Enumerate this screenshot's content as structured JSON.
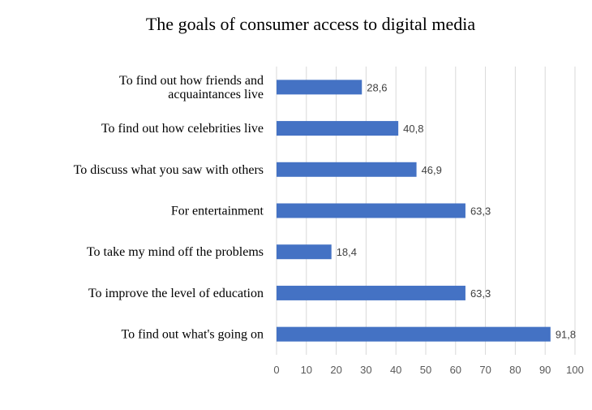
{
  "chart_data": {
    "type": "bar",
    "orientation": "horizontal",
    "title": "The goals of consumer access to digital media",
    "categories": [
      [
        "To find out how friends and",
        " acquaintances live"
      ],
      [
        "To find out how celebrities live"
      ],
      [
        "To discuss what you saw with others"
      ],
      [
        "For entertainment"
      ],
      [
        "To take my mind off the problems"
      ],
      [
        "To improve the level of education"
      ],
      [
        "To find out what's going on"
      ]
    ],
    "values": [
      28.6,
      40.8,
      46.9,
      63.3,
      18.4,
      63.3,
      91.8
    ],
    "value_labels": [
      "28,6",
      "40,8",
      "46,9",
      "63,3",
      "18,4",
      "63,3",
      "91,8"
    ],
    "xlim": [
      0,
      100
    ],
    "xticks": [
      0,
      10,
      20,
      30,
      40,
      50,
      60,
      70,
      80,
      90,
      100
    ],
    "grid": true,
    "legend": "none",
    "bar_color": "#4472c4"
  }
}
